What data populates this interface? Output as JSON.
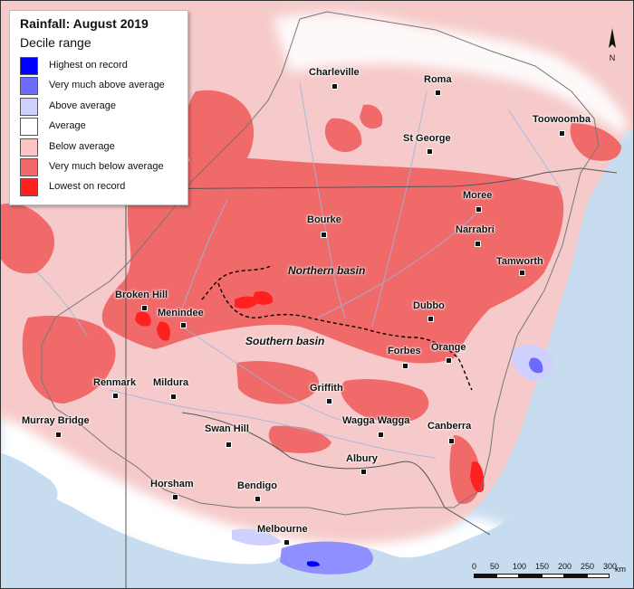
{
  "legend": {
    "title": "Rainfall: August 2019",
    "subtitle": "Decile range",
    "items": [
      {
        "label": "Highest on record",
        "color": "#0000ff"
      },
      {
        "label": "Very much above average",
        "color": "#6b6bff"
      },
      {
        "label": "Above average",
        "color": "#d0d0ff"
      },
      {
        "label": "Average",
        "color": "#ffffff"
      },
      {
        "label": "Below average",
        "color": "#fbc4c4"
      },
      {
        "label": "Very much below average",
        "color": "#f06a6a"
      },
      {
        "label": "Lowest on record",
        "color": "#ff2020"
      }
    ]
  },
  "towns": {
    "charleville": "Charleville",
    "roma": "Roma",
    "toowoomba": "Toowoomba",
    "st_george": "St George",
    "moree": "Moree",
    "bourke": "Bourke",
    "narrabri": "Narrabri",
    "tamworth": "Tamworth",
    "broken_hill": "Broken Hill",
    "menindee": "Menindee",
    "dubbo": "Dubbo",
    "orange": "Orange",
    "forbes": "Forbes",
    "renmark": "Renmark",
    "mildura": "Mildura",
    "griffith": "Griffith",
    "murray_bridge": "Murray Bridge",
    "wagga_wagga": "Wagga Wagga",
    "canberra": "Canberra",
    "swan_hill": "Swan Hill",
    "albury": "Albury",
    "horsham": "Horsham",
    "bendigo": "Bendigo",
    "melbourne": "Melbourne"
  },
  "basins": {
    "northern": "Northern basin",
    "southern": "Southern basin"
  },
  "north_arrow": {
    "label": "N"
  },
  "scale": {
    "ticks": [
      "0",
      "50",
      "100",
      "150",
      "200",
      "250",
      "300"
    ],
    "unit": "km"
  }
}
